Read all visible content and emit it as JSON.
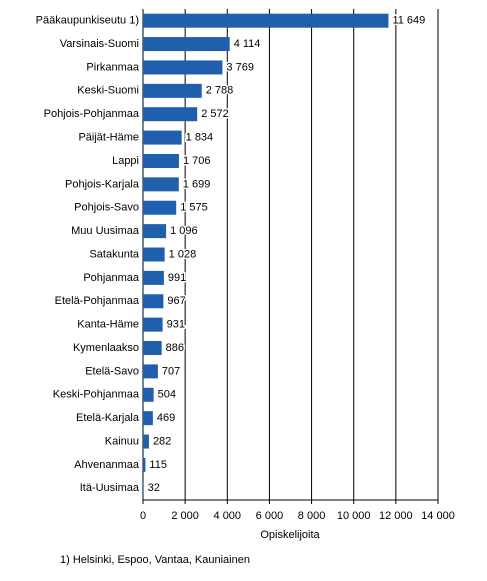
{
  "chart_data": {
    "type": "bar",
    "orientation": "horizontal",
    "categories": [
      "Pääkaupunkiseutu 1)",
      "Varsinais-Suomi",
      "Pirkanmaa",
      "Keski-Suomi",
      "Pohjois-Pohjanmaa",
      "Päijät-Häme",
      "Lappi",
      "Pohjois-Karjala",
      "Pohjois-Savo",
      "Muu Uusimaa",
      "Satakunta",
      "Pohjanmaa",
      "Etelä-Pohjanmaa",
      "Kanta-Häme",
      "Kymenlaakso",
      "Etelä-Savo",
      "Keski-Pohjanmaa",
      "Etelä-Karjala",
      "Kainuu",
      "Ahvenanmaa",
      "Itä-Uusimaa"
    ],
    "values": [
      11649,
      4114,
      3769,
      2788,
      2572,
      1834,
      1706,
      1699,
      1575,
      1096,
      1028,
      991,
      967,
      931,
      886,
      707,
      504,
      469,
      282,
      115,
      32
    ],
    "value_labels": [
      "11 649",
      "4 114",
      "3 769",
      "2 788",
      "2 572",
      "1 834",
      "1 706",
      "1 699",
      "1 575",
      "1 096",
      "1 028",
      "991",
      "967",
      "931",
      "886",
      "707",
      "504",
      "469",
      "282",
      "115",
      "32"
    ],
    "color": "#1f5fae",
    "xlim": [
      0,
      14000
    ],
    "xticks": [
      0,
      {
        "value": 2000,
        "label": "2 000"
      },
      {
        "value": 4000,
        "label": "4 000"
      },
      {
        "value": 6000,
        "label": "6 000"
      },
      {
        "value": 8000,
        "label": "8 000"
      },
      {
        "value": 10000,
        "label": "10 000"
      },
      {
        "value": 12000,
        "label": "12 000"
      },
      {
        "value": 14000,
        "label": "14 000"
      }
    ],
    "grid": true,
    "x_label": "Opiskelijoita",
    "footnote": "1) Helsinki, Espoo, Vantaa, Kauniainen"
  }
}
